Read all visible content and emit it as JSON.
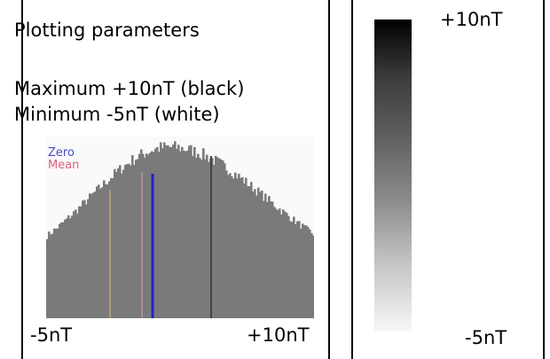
{
  "params": {
    "title": "Plotting parameters",
    "maximum": "Maximum +10nT (black)",
    "minimum": "Minimum -5nT (white)"
  },
  "histogram": {
    "legend_zero": "Zero",
    "legend_mean": "Mean",
    "axis_min_label": "-5nT",
    "axis_max_label": "+10nT",
    "axis_min": -5,
    "axis_max": 10,
    "zero_value": 0,
    "mean_value": 2.5,
    "bar_color": "#7a7a7a",
    "zero_color": "#2222cc",
    "mean_color": "#444444"
  },
  "scale": {
    "top_label": "+10nT",
    "bottom_label": "-5nT",
    "top_color": "#000000",
    "bottom_color": "#ffffff"
  }
}
